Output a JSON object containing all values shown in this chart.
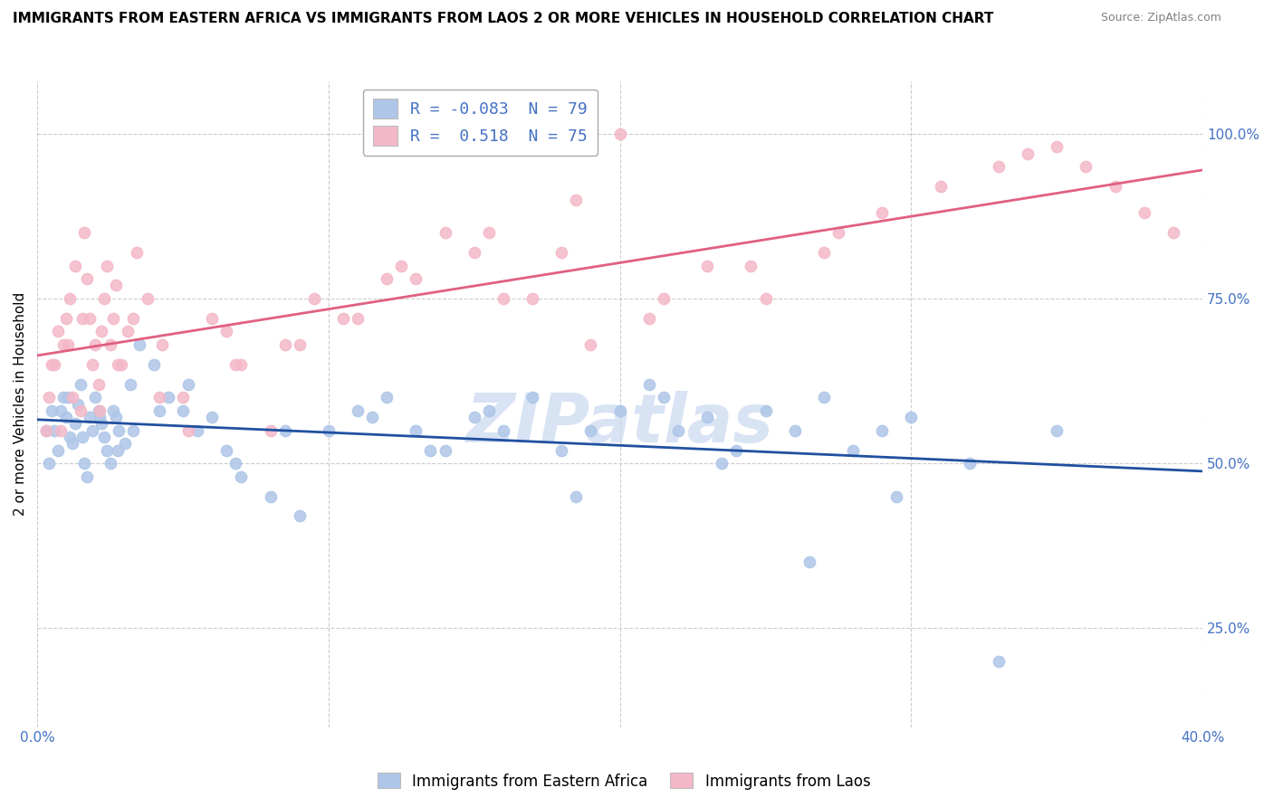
{
  "title": "IMMIGRANTS FROM EASTERN AFRICA VS IMMIGRANTS FROM LAOS 2 OR MORE VEHICLES IN HOUSEHOLD CORRELATION CHART",
  "source": "Source: ZipAtlas.com",
  "ylabel": "2 or more Vehicles in Household",
  "xlim": [
    0.0,
    40.0
  ],
  "ylim": [
    10.0,
    108.0
  ],
  "legend_labels": [
    "Immigrants from Eastern Africa",
    "Immigrants from Laos"
  ],
  "R_blue": -0.083,
  "N_blue": 79,
  "R_pink": 0.518,
  "N_pink": 75,
  "blue_color": "#aec6e8",
  "pink_color": "#f4b8c8",
  "blue_line_color": "#2050a0",
  "pink_line_color": "#e06080",
  "watermark": "ZIPatlas",
  "watermark_color": "#c8d8f0",
  "blue_scatter_x": [
    0.3,
    0.5,
    0.7,
    0.9,
    1.0,
    1.1,
    1.2,
    1.3,
    1.4,
    1.5,
    1.6,
    1.7,
    1.8,
    1.9,
    2.0,
    2.1,
    2.2,
    2.3,
    2.4,
    2.5,
    2.6,
    2.7,
    2.8,
    3.0,
    3.2,
    3.5,
    4.0,
    4.5,
    5.0,
    5.5,
    6.0,
    6.5,
    7.0,
    8.0,
    9.0,
    10.0,
    11.0,
    12.0,
    13.0,
    14.0,
    15.0,
    16.0,
    17.0,
    18.0,
    19.0,
    20.0,
    21.0,
    22.0,
    23.0,
    24.0,
    25.0,
    26.0,
    27.0,
    28.0,
    29.0,
    30.0,
    32.0,
    35.0,
    0.4,
    0.6,
    0.8,
    1.05,
    1.55,
    2.15,
    2.75,
    3.3,
    4.2,
    5.2,
    6.8,
    8.5,
    11.5,
    13.5,
    15.5,
    18.5,
    21.5,
    23.5,
    26.5,
    29.5,
    33.0
  ],
  "blue_scatter_y": [
    55,
    58,
    52,
    60,
    57,
    54,
    53,
    56,
    59,
    62,
    50,
    48,
    57,
    55,
    60,
    58,
    56,
    54,
    52,
    50,
    58,
    57,
    55,
    53,
    62,
    68,
    65,
    60,
    58,
    55,
    57,
    52,
    48,
    45,
    42,
    55,
    58,
    60,
    55,
    52,
    57,
    55,
    60,
    52,
    55,
    58,
    62,
    55,
    57,
    52,
    58,
    55,
    60,
    52,
    55,
    57,
    50,
    55,
    50,
    55,
    58,
    60,
    54,
    57,
    52,
    55,
    58,
    62,
    50,
    55,
    57,
    52,
    58,
    45,
    60,
    50,
    35,
    45,
    20
  ],
  "pink_scatter_x": [
    0.3,
    0.5,
    0.7,
    0.9,
    1.0,
    1.1,
    1.2,
    1.3,
    1.5,
    1.6,
    1.7,
    1.8,
    1.9,
    2.0,
    2.1,
    2.2,
    2.3,
    2.4,
    2.5,
    2.6,
    2.7,
    2.9,
    3.1,
    3.4,
    3.8,
    4.3,
    5.0,
    6.0,
    7.0,
    8.0,
    9.0,
    10.5,
    12.0,
    14.0,
    16.0,
    18.0,
    20.0,
    0.4,
    0.6,
    0.8,
    1.05,
    1.55,
    2.15,
    2.75,
    3.3,
    4.2,
    5.2,
    6.8,
    8.5,
    11.0,
    13.0,
    15.0,
    17.0,
    19.0,
    21.0,
    23.0,
    25.0,
    27.0,
    29.0,
    31.0,
    33.0,
    34.0,
    35.0,
    36.0,
    37.0,
    38.0,
    39.0,
    6.5,
    9.5,
    12.5,
    15.5,
    18.5,
    21.5,
    24.5,
    27.5
  ],
  "pink_scatter_y": [
    55,
    65,
    70,
    68,
    72,
    75,
    60,
    80,
    58,
    85,
    78,
    72,
    65,
    68,
    62,
    70,
    75,
    80,
    68,
    72,
    77,
    65,
    70,
    82,
    75,
    68,
    60,
    72,
    65,
    55,
    68,
    72,
    78,
    85,
    75,
    82,
    100,
    60,
    65,
    55,
    68,
    72,
    58,
    65,
    72,
    60,
    55,
    65,
    68,
    72,
    78,
    82,
    75,
    68,
    72,
    80,
    75,
    82,
    88,
    92,
    95,
    97,
    98,
    95,
    92,
    88,
    85,
    70,
    75,
    80,
    85,
    90,
    75,
    80,
    85
  ]
}
